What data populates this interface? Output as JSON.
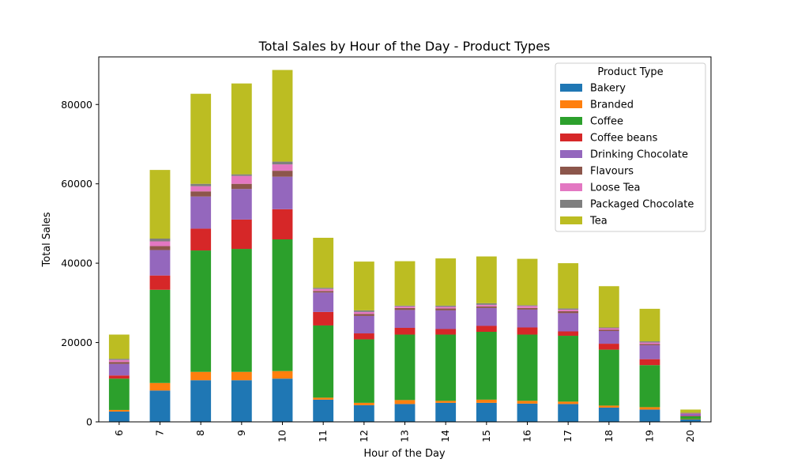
{
  "chart_data": {
    "type": "bar",
    "stacked": true,
    "title": "Total Sales by Hour of the Day - Product Types",
    "xlabel": "Hour of the Day",
    "ylabel": "Total Sales",
    "ylim": [
      0,
      92000
    ],
    "yticks": [
      0,
      20000,
      40000,
      60000,
      80000
    ],
    "grid": false,
    "legend": {
      "title": "Product Type",
      "placement": "top-right"
    },
    "categories": [
      "6",
      "7",
      "8",
      "9",
      "10",
      "11",
      "12",
      "13",
      "14",
      "15",
      "16",
      "17",
      "18",
      "19",
      "20"
    ],
    "series": [
      {
        "name": "Bakery",
        "color": "#1f77b4",
        "values": [
          2600,
          7900,
          10500,
          10500,
          10900,
          5600,
          4200,
          4500,
          4800,
          4800,
          4600,
          4500,
          3600,
          3100,
          600
        ]
      },
      {
        "name": "Branded",
        "color": "#ff7f0e",
        "values": [
          400,
          1900,
          2100,
          2100,
          1900,
          500,
          600,
          1000,
          500,
          800,
          700,
          600,
          500,
          600,
          100
        ]
      },
      {
        "name": "Coffee",
        "color": "#2ca02c",
        "values": [
          7900,
          23500,
          30600,
          31000,
          33200,
          18200,
          16000,
          16500,
          16700,
          17100,
          16700,
          16600,
          14100,
          10600,
          700
        ]
      },
      {
        "name": "Coffee beans",
        "color": "#d62728",
        "values": [
          800,
          3600,
          5500,
          7400,
          7600,
          3400,
          1500,
          1700,
          1400,
          1500,
          1800,
          1100,
          1500,
          1500,
          100
        ]
      },
      {
        "name": "Drinking Chocolate",
        "color": "#9467bd",
        "values": [
          2900,
          6400,
          8100,
          7700,
          8200,
          4900,
          4400,
          4500,
          4700,
          4500,
          4500,
          4600,
          3200,
          3500,
          500
        ]
      },
      {
        "name": "Flavours",
        "color": "#8c564b",
        "values": [
          500,
          1000,
          1300,
          1300,
          1500,
          400,
          500,
          500,
          500,
          400,
          400,
          500,
          300,
          300,
          100
        ]
      },
      {
        "name": "Loose Tea",
        "color": "#e377c2",
        "values": [
          500,
          1200,
          1300,
          2000,
          1600,
          500,
          500,
          400,
          400,
          400,
          500,
          400,
          400,
          400,
          100
        ]
      },
      {
        "name": "Packaged Chocolate",
        "color": "#7f7f7f",
        "values": [
          300,
          700,
          600,
          400,
          700,
          300,
          400,
          200,
          300,
          400,
          200,
          300,
          200,
          300,
          100
        ]
      },
      {
        "name": "Tea",
        "color": "#bcbd22",
        "values": [
          6100,
          17300,
          22700,
          22900,
          23100,
          12600,
          12300,
          11200,
          11900,
          11800,
          11700,
          11400,
          10400,
          8200,
          800
        ]
      }
    ]
  }
}
